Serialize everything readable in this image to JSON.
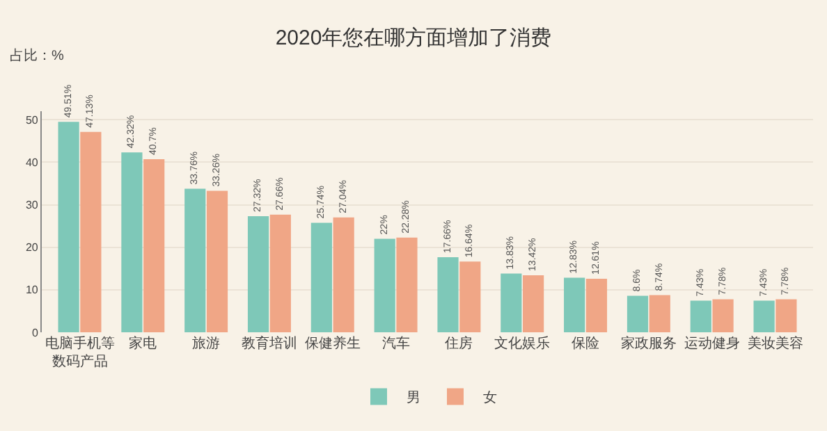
{
  "chart_data": {
    "type": "bar",
    "title": "2020年您在哪方面增加了消费",
    "ylabel": "占比：%",
    "categories": [
      "电脑手机等数码产品",
      "家电",
      "旅游",
      "教育培训",
      "保健养生",
      "汽车",
      "住房",
      "文化娱乐",
      "保险",
      "家政服务",
      "运动健身",
      "美妆美容"
    ],
    "series": [
      {
        "name": "男",
        "color": "#7ec8b8",
        "values": [
          49.51,
          42.32,
          33.76,
          27.32,
          25.74,
          22,
          17.66,
          13.83,
          12.83,
          8.6,
          7.43,
          7.43
        ],
        "value_labels": [
          "49.51%",
          "42.32%",
          "33.76%",
          "27.32%",
          "25.74%",
          "22%",
          "17.66%",
          "13.83%",
          "12.83%",
          "8.6%",
          "7.43%",
          "7.43%"
        ]
      },
      {
        "name": "女",
        "color": "#f0a686",
        "values": [
          47.13,
          40.7,
          33.26,
          27.66,
          27.04,
          22.28,
          16.64,
          13.42,
          12.61,
          8.74,
          7.78,
          7.78
        ],
        "value_labels": [
          "47.13%",
          "40.7%",
          "33.26%",
          "27.66%",
          "27.04%",
          "22.28%",
          "16.64%",
          "13.42%",
          "12.61%",
          "8.74%",
          "7.78%",
          "7.78%"
        ]
      }
    ],
    "ylim": [
      0,
      52
    ],
    "yticks": [
      0,
      10,
      20,
      30,
      40,
      50
    ],
    "grid": "y",
    "legend": "bottom"
  }
}
